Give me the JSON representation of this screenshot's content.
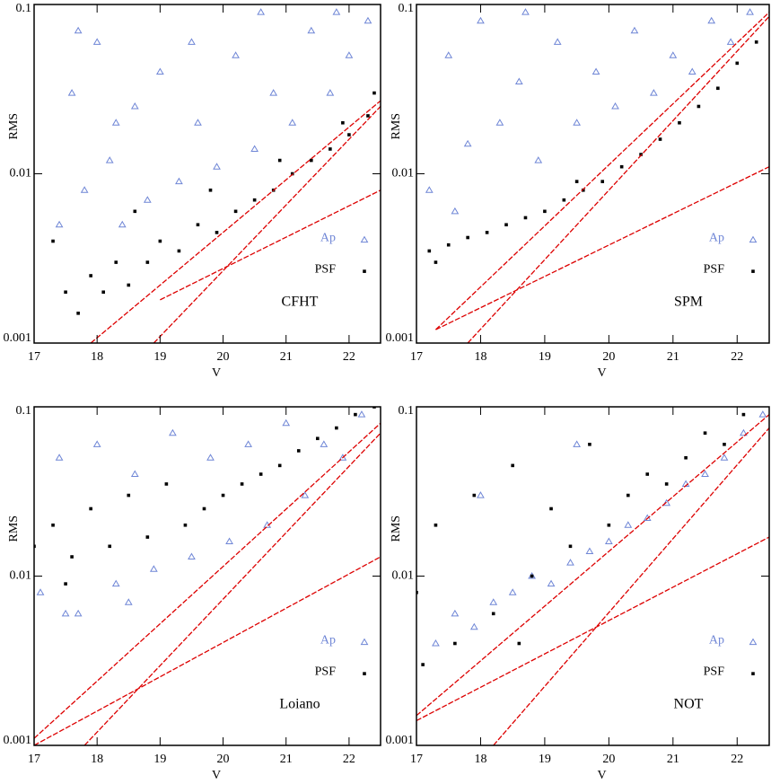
{
  "chart_data": [
    {
      "type": "scatter",
      "label": "CFHT",
      "x_label": "V",
      "y_label": "RMS",
      "xlim": [
        17,
        22.5
      ],
      "ylim": [
        0.001,
        0.1
      ],
      "log_y": true,
      "xticks": [
        17,
        18,
        19,
        20,
        21,
        22
      ],
      "yticks": [
        0.001,
        0.01,
        0.1
      ],
      "legend": "lower right",
      "series": [
        {
          "name": "Ap",
          "color": "#6f86d6",
          "marker": "triangle",
          "x": [
            17.4,
            17.6,
            17.8,
            18.0,
            18.2,
            18.4,
            18.6,
            18.8,
            19.0,
            19.3,
            19.6,
            19.9,
            20.2,
            20.5,
            20.8,
            21.1,
            21.4,
            21.7,
            22.0,
            22.3,
            17.7,
            18.3,
            19.5,
            20.6,
            21.8
          ],
          "values": [
            0.005,
            0.03,
            0.008,
            0.06,
            0.012,
            0.005,
            0.025,
            0.007,
            0.04,
            0.009,
            0.02,
            0.011,
            0.05,
            0.014,
            0.03,
            0.02,
            0.07,
            0.03,
            0.05,
            0.08,
            0.07,
            0.02,
            0.06,
            0.09,
            0.09
          ]
        },
        {
          "name": "PSF",
          "color": "#000000",
          "marker": "square",
          "x": [
            17.5,
            17.7,
            17.9,
            18.1,
            18.3,
            18.5,
            18.8,
            19.0,
            19.3,
            19.6,
            19.9,
            20.2,
            20.5,
            20.8,
            21.1,
            21.4,
            21.7,
            22.0,
            22.3,
            17.3,
            18.6,
            19.8,
            20.9,
            21.9,
            22.4
          ],
          "values": [
            0.002,
            0.0015,
            0.0025,
            0.002,
            0.003,
            0.0022,
            0.003,
            0.004,
            0.0035,
            0.005,
            0.0045,
            0.006,
            0.007,
            0.008,
            0.01,
            0.012,
            0.014,
            0.017,
            0.022,
            0.004,
            0.006,
            0.008,
            0.012,
            0.02,
            0.03
          ]
        },
        {
          "color": "#dd0000",
          "style": "line",
          "x": [
            17.9,
            22.5
          ],
          "values": [
            0.001,
            0.027
          ]
        },
        {
          "color": "#dd0000",
          "style": "line",
          "x": [
            18.9,
            22.5
          ],
          "values": [
            0.001,
            0.025
          ]
        },
        {
          "color": "#dd0000",
          "style": "line",
          "x": [
            19.0,
            22.5
          ],
          "values": [
            0.0018,
            0.008
          ]
        }
      ]
    },
    {
      "type": "scatter",
      "label": "SPM",
      "x_label": "V",
      "y_label": "RMS",
      "xlim": [
        17,
        22.5
      ],
      "ylim": [
        0.001,
        0.1
      ],
      "log_y": true,
      "xticks": [
        17,
        18,
        19,
        20,
        21,
        22
      ],
      "yticks": [
        0.001,
        0.01,
        0.1
      ],
      "legend": "lower right",
      "series": [
        {
          "name": "Ap",
          "color": "#6f86d6",
          "marker": "triangle",
          "x": [
            17.2,
            17.5,
            17.8,
            18.0,
            18.3,
            18.6,
            18.9,
            19.2,
            19.5,
            19.8,
            20.1,
            20.4,
            20.7,
            21.0,
            21.3,
            21.6,
            21.9,
            22.2,
            17.6,
            18.7
          ],
          "values": [
            0.008,
            0.05,
            0.015,
            0.08,
            0.02,
            0.035,
            0.012,
            0.06,
            0.02,
            0.04,
            0.025,
            0.07,
            0.03,
            0.05,
            0.04,
            0.08,
            0.06,
            0.09,
            0.006,
            0.09
          ]
        },
        {
          "name": "PSF",
          "color": "#000000",
          "marker": "square",
          "x": [
            17.2,
            17.5,
            17.8,
            18.1,
            18.4,
            18.7,
            19.0,
            19.3,
            19.6,
            19.9,
            20.2,
            20.5,
            20.8,
            21.1,
            21.4,
            21.7,
            22.0,
            22.3,
            17.3,
            19.5
          ],
          "values": [
            0.0035,
            0.0038,
            0.0042,
            0.0045,
            0.005,
            0.0055,
            0.006,
            0.007,
            0.008,
            0.009,
            0.011,
            0.013,
            0.016,
            0.02,
            0.025,
            0.032,
            0.045,
            0.06,
            0.003,
            0.009
          ]
        },
        {
          "color": "#dd0000",
          "style": "line",
          "x": [
            17.3,
            22.5
          ],
          "values": [
            0.0012,
            0.09
          ]
        },
        {
          "color": "#dd0000",
          "style": "line",
          "x": [
            17.8,
            22.5
          ],
          "values": [
            0.001,
            0.085
          ]
        },
        {
          "color": "#dd0000",
          "style": "line",
          "x": [
            17.3,
            22.5
          ],
          "values": [
            0.0012,
            0.011
          ]
        }
      ]
    },
    {
      "type": "scatter",
      "label": "Loiano",
      "x_label": "V",
      "y_label": "RMS",
      "xlim": [
        17,
        22.5
      ],
      "ylim": [
        0.001,
        0.1
      ],
      "log_y": true,
      "xticks": [
        17,
        18,
        19,
        20,
        21,
        22
      ],
      "yticks": [
        0.001,
        0.01,
        0.1
      ],
      "legend": "lower right",
      "series": [
        {
          "name": "Ap",
          "color": "#6f86d6",
          "marker": "triangle",
          "x": [
            17.1,
            17.4,
            17.7,
            18.0,
            18.3,
            18.6,
            18.9,
            19.2,
            19.5,
            19.8,
            20.1,
            20.4,
            20.7,
            21.0,
            21.3,
            21.6,
            21.9,
            22.2,
            17.5,
            18.5
          ],
          "values": [
            0.008,
            0.05,
            0.006,
            0.06,
            0.009,
            0.04,
            0.011,
            0.07,
            0.013,
            0.05,
            0.016,
            0.06,
            0.02,
            0.08,
            0.03,
            0.06,
            0.05,
            0.09,
            0.006,
            0.007
          ]
        },
        {
          "name": "PSF",
          "color": "#000000",
          "marker": "square",
          "x": [
            17.0,
            17.3,
            17.6,
            17.9,
            18.2,
            18.5,
            18.8,
            19.1,
            19.4,
            19.7,
            20.0,
            20.3,
            20.6,
            20.9,
            21.2,
            21.5,
            21.8,
            22.1,
            22.4,
            17.5
          ],
          "values": [
            0.015,
            0.02,
            0.013,
            0.025,
            0.015,
            0.03,
            0.017,
            0.035,
            0.02,
            0.025,
            0.03,
            0.035,
            0.04,
            0.045,
            0.055,
            0.065,
            0.075,
            0.09,
            0.1,
            0.009
          ]
        },
        {
          "color": "#dd0000",
          "style": "line",
          "x": [
            17.0,
            22.5
          ],
          "values": [
            0.0011,
            0.08
          ]
        },
        {
          "color": "#dd0000",
          "style": "line",
          "x": [
            17.8,
            22.5
          ],
          "values": [
            0.001,
            0.07
          ]
        },
        {
          "color": "#dd0000",
          "style": "line",
          "x": [
            17.0,
            22.5
          ],
          "values": [
            0.001,
            0.013
          ]
        }
      ]
    },
    {
      "type": "scatter",
      "label": "NOT",
      "x_label": "V",
      "y_label": "RMS",
      "xlim": [
        17,
        22.5
      ],
      "ylim": [
        0.001,
        0.1
      ],
      "log_y": true,
      "xticks": [
        17,
        18,
        19,
        20,
        21,
        22
      ],
      "yticks": [
        0.001,
        0.01,
        0.1
      ],
      "legend": "lower right",
      "series": [
        {
          "name": "Ap",
          "color": "#6f86d6",
          "marker": "triangle",
          "x": [
            17.3,
            17.6,
            17.9,
            18.2,
            18.5,
            18.8,
            19.1,
            19.4,
            19.7,
            20.0,
            20.3,
            20.6,
            20.9,
            21.2,
            21.5,
            21.8,
            22.1,
            22.4,
            18.0,
            19.5
          ],
          "values": [
            0.004,
            0.006,
            0.005,
            0.007,
            0.008,
            0.01,
            0.009,
            0.012,
            0.014,
            0.016,
            0.02,
            0.022,
            0.027,
            0.035,
            0.04,
            0.05,
            0.07,
            0.09,
            0.03,
            0.06
          ]
        },
        {
          "name": "PSF",
          "color": "#000000",
          "marker": "square",
          "x": [
            17.0,
            17.3,
            17.6,
            17.9,
            18.2,
            18.5,
            18.8,
            19.1,
            19.4,
            19.7,
            20.0,
            20.3,
            20.6,
            20.9,
            21.2,
            21.5,
            21.8,
            22.1,
            17.1,
            18.6
          ],
          "values": [
            0.008,
            0.02,
            0.004,
            0.03,
            0.006,
            0.045,
            0.01,
            0.025,
            0.015,
            0.06,
            0.02,
            0.03,
            0.04,
            0.035,
            0.05,
            0.07,
            0.06,
            0.09,
            0.003,
            0.004
          ]
        },
        {
          "color": "#dd0000",
          "style": "line",
          "x": [
            17.0,
            22.5
          ],
          "values": [
            0.0015,
            0.09
          ]
        },
        {
          "color": "#dd0000",
          "style": "line",
          "x": [
            18.2,
            22.5
          ],
          "values": [
            0.001,
            0.075
          ]
        },
        {
          "color": "#dd0000",
          "style": "line",
          "x": [
            17.0,
            22.5
          ],
          "values": [
            0.0014,
            0.017
          ]
        }
      ]
    }
  ]
}
